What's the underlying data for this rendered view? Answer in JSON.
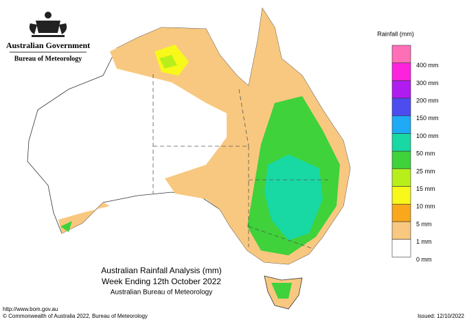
{
  "header": {
    "government": "Australian Government",
    "agency": "Bureau of Meteorology"
  },
  "legend": {
    "title": "Rainfall (mm)",
    "top_color": "#ff6fb8",
    "items": [
      {
        "color": "#ff22dd",
        "label": "400 mm"
      },
      {
        "color": "#b01cf0",
        "label": "300 mm"
      },
      {
        "color": "#4c4cf0",
        "label": "200 mm"
      },
      {
        "color": "#1eaaf5",
        "label": "150 mm"
      },
      {
        "color": "#18d8a4",
        "label": "100 mm"
      },
      {
        "color": "#3fd23a",
        "label": "50 mm"
      },
      {
        "color": "#b8ef1a",
        "label": "25 mm"
      },
      {
        "color": "#f8f81a",
        "label": "15 mm"
      },
      {
        "color": "#f8a81a",
        "label": "10 mm"
      },
      {
        "color": "#f8c880",
        "label": "5 mm"
      },
      {
        "color": "#ffffff",
        "label": "1 mm"
      },
      {
        "color": "#ffffff",
        "label": "0 mm"
      }
    ]
  },
  "caption": {
    "title": "Australian Rainfall Analysis (mm)",
    "subtitle": "Week Ending 12th October 2022",
    "source": "Australian Bureau of Meteorology"
  },
  "footer": {
    "url": "http://www.bom.gov.au",
    "copyright": "© Commonwealth of Australia 2022, Bureau of Meteorology",
    "issued": "Issued: 12/10/2022"
  }
}
